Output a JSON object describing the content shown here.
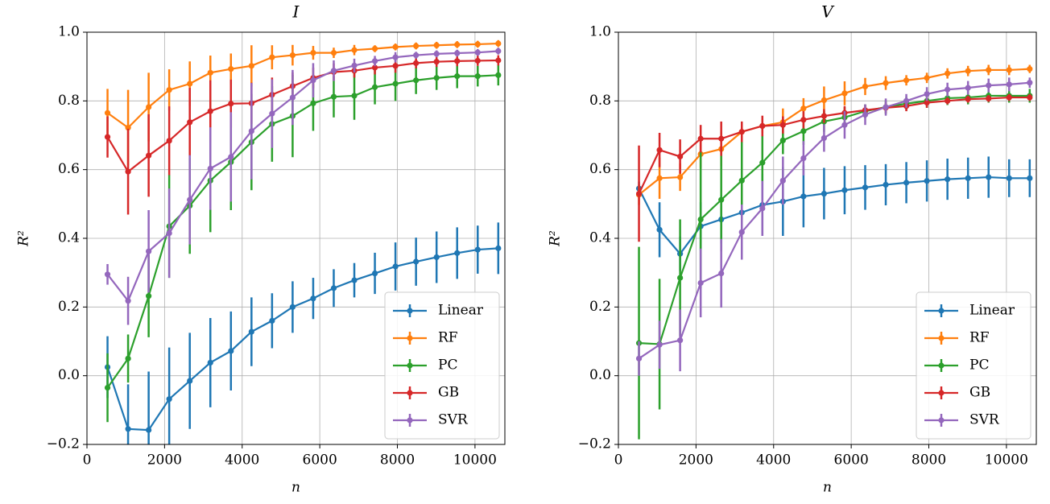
{
  "chart_data": [
    {
      "type": "line",
      "title": "I",
      "x_label": "n",
      "y_label": "R²",
      "x": [
        530,
        1060,
        1590,
        2120,
        2650,
        3180,
        3710,
        4240,
        4770,
        5300,
        5830,
        6360,
        6890,
        7420,
        7950,
        8480,
        9010,
        9540,
        10070,
        10600
      ],
      "xlim": [
        0,
        10770
      ],
      "xticks": [
        0,
        2000,
        4000,
        6000,
        8000,
        10000
      ],
      "ylim": [
        -0.2,
        1.0
      ],
      "yticks": [
        {
          "value": -0.2,
          "label": "−0.2"
        },
        {
          "value": 0,
          "label": "0.0"
        },
        0.2,
        0.4,
        0.6,
        0.8,
        {
          "value": 1.0,
          "label": "1.0"
        }
      ],
      "grid": true,
      "legend": "lower right",
      "series": [
        {
          "name": "Linear",
          "color": "#1f77b4",
          "values": [
            0.025,
            -0.155,
            -0.158,
            -0.068,
            -0.015,
            0.038,
            0.072,
            0.128,
            0.16,
            0.2,
            0.225,
            0.255,
            0.278,
            0.298,
            0.318,
            0.332,
            0.345,
            0.357,
            0.367,
            0.371
          ],
          "errors": [
            0.09,
            0.13,
            0.17,
            0.15,
            0.14,
            0.13,
            0.115,
            0.1,
            0.08,
            0.075,
            0.06,
            0.055,
            0.05,
            0.06,
            0.07,
            0.07,
            0.075,
            0.075,
            0.07,
            0.075
          ]
        },
        {
          "name": "RF",
          "color": "#ff7f0e",
          "values": [
            0.765,
            0.722,
            0.782,
            0.832,
            0.85,
            0.882,
            0.893,
            0.902,
            0.927,
            0.933,
            0.94,
            0.94,
            0.948,
            0.952,
            0.957,
            0.96,
            0.962,
            0.964,
            0.965,
            0.967
          ],
          "errors": [
            0.07,
            0.11,
            0.1,
            0.06,
            0.065,
            0.05,
            0.045,
            0.06,
            0.035,
            0.03,
            0.02,
            0.015,
            0.015,
            0.01,
            0.01,
            0.01,
            0.01,
            0.01,
            0.01,
            0.01
          ]
        },
        {
          "name": "PC",
          "color": "#2ca02c",
          "values": [
            -0.035,
            0.05,
            0.232,
            0.435,
            0.495,
            0.568,
            0.622,
            0.68,
            0.733,
            0.756,
            0.793,
            0.812,
            0.815,
            0.84,
            0.85,
            0.86,
            0.867,
            0.872,
            0.872,
            0.875
          ],
          "errors": [
            0.1,
            0.07,
            0.12,
            0.15,
            0.14,
            0.15,
            0.14,
            0.14,
            0.11,
            0.12,
            0.08,
            0.06,
            0.07,
            0.05,
            0.05,
            0.04,
            0.035,
            0.035,
            0.03,
            0.03
          ]
        },
        {
          "name": "GB",
          "color": "#d62728",
          "values": [
            0.695,
            0.594,
            0.641,
            0.684,
            0.738,
            0.77,
            0.792,
            0.793,
            0.818,
            0.843,
            0.867,
            0.884,
            0.888,
            0.897,
            0.902,
            0.91,
            0.914,
            0.916,
            0.917,
            0.918
          ],
          "errors": [
            0.06,
            0.125,
            0.12,
            0.1,
            0.1,
            0.09,
            0.07,
            0.06,
            0.05,
            0.04,
            0.03,
            0.025,
            0.02,
            0.02,
            0.02,
            0.015,
            0.015,
            0.015,
            0.015,
            0.015
          ]
        },
        {
          "name": "SVR",
          "color": "#9467bd",
          "values": [
            0.295,
            0.218,
            0.362,
            0.415,
            0.512,
            0.603,
            0.637,
            0.712,
            0.763,
            0.81,
            0.86,
            0.888,
            0.903,
            0.916,
            0.927,
            0.933,
            0.937,
            0.939,
            0.941,
            0.945
          ],
          "errors": [
            0.03,
            0.07,
            0.12,
            0.13,
            0.13,
            0.12,
            0.13,
            0.14,
            0.1,
            0.08,
            0.05,
            0.03,
            0.02,
            0.015,
            0.015,
            0.01,
            0.01,
            0.01,
            0.01,
            0.01
          ]
        }
      ]
    },
    {
      "type": "line",
      "title": "V",
      "x_label": "n",
      "y_label": "R²",
      "x": [
        530,
        1060,
        1590,
        2120,
        2650,
        3180,
        3710,
        4240,
        4770,
        5300,
        5830,
        6360,
        6890,
        7420,
        7950,
        8480,
        9010,
        9540,
        10070,
        10600
      ],
      "xlim": [
        0,
        10770
      ],
      "xticks": [
        0,
        2000,
        4000,
        6000,
        8000,
        10000
      ],
      "ylim": [
        -0.2,
        1.0
      ],
      "yticks": [
        {
          "value": -0.2,
          "label": "−0.2"
        },
        {
          "value": 0,
          "label": "0.0"
        },
        0.2,
        0.4,
        0.6,
        0.8,
        {
          "value": 1.0,
          "label": "1.0"
        }
      ],
      "grid": true,
      "legend": "lower right",
      "series": [
        {
          "name": "Linear",
          "color": "#1f77b4",
          "values": [
            0.545,
            0.425,
            0.355,
            0.435,
            0.455,
            0.475,
            0.497,
            0.507,
            0.522,
            0.53,
            0.54,
            0.548,
            0.556,
            0.562,
            0.567,
            0.572,
            0.575,
            0.578,
            0.575,
            0.575
          ],
          "errors": [
            0.02,
            0.08,
            0.05,
            0.07,
            0.07,
            0.07,
            0.09,
            0.1,
            0.09,
            0.075,
            0.07,
            0.065,
            0.06,
            0.06,
            0.06,
            0.06,
            0.06,
            0.06,
            0.055,
            0.055
          ]
        },
        {
          "name": "RF",
          "color": "#ff7f0e",
          "values": [
            0.527,
            0.575,
            0.578,
            0.645,
            0.66,
            0.71,
            0.727,
            0.738,
            0.778,
            0.802,
            0.822,
            0.842,
            0.852,
            0.86,
            0.867,
            0.88,
            0.887,
            0.89,
            0.89,
            0.893
          ],
          "errors": [
            0.03,
            0.06,
            0.04,
            0.04,
            0.05,
            0.03,
            0.02,
            0.04,
            0.03,
            0.04,
            0.035,
            0.025,
            0.02,
            0.015,
            0.015,
            0.015,
            0.015,
            0.015,
            0.015,
            0.012
          ]
        },
        {
          "name": "PC",
          "color": "#2ca02c",
          "values": [
            0.095,
            0.092,
            0.285,
            0.455,
            0.512,
            0.568,
            0.62,
            0.685,
            0.712,
            0.74,
            0.752,
            0.77,
            0.782,
            0.792,
            0.8,
            0.808,
            0.81,
            0.815,
            0.815,
            0.815
          ],
          "errors": [
            0.28,
            0.19,
            0.17,
            0.2,
            0.15,
            0.12,
            0.08,
            0.04,
            0.04,
            0.03,
            0.03,
            0.02,
            0.02,
            0.02,
            0.02,
            0.02,
            0.02,
            0.02,
            0.02,
            0.02
          ]
        },
        {
          "name": "GB",
          "color": "#d62728",
          "values": [
            0.53,
            0.657,
            0.638,
            0.69,
            0.69,
            0.71,
            0.727,
            0.73,
            0.745,
            0.756,
            0.765,
            0.773,
            0.78,
            0.785,
            0.795,
            0.8,
            0.805,
            0.807,
            0.81,
            0.81
          ],
          "errors": [
            0.14,
            0.05,
            0.05,
            0.04,
            0.05,
            0.03,
            0.03,
            0.025,
            0.025,
            0.02,
            0.02,
            0.015,
            0.015,
            0.015,
            0.015,
            0.01,
            0.01,
            0.01,
            0.01,
            0.01
          ]
        },
        {
          "name": "SVR",
          "color": "#9467bd",
          "values": [
            0.05,
            0.09,
            0.103,
            0.27,
            0.298,
            0.418,
            0.487,
            0.568,
            0.633,
            0.692,
            0.73,
            0.76,
            0.782,
            0.8,
            0.82,
            0.833,
            0.838,
            0.845,
            0.848,
            0.853
          ],
          "errors": [
            0.05,
            0.07,
            0.09,
            0.1,
            0.1,
            0.08,
            0.08,
            0.07,
            0.05,
            0.04,
            0.04,
            0.03,
            0.025,
            0.02,
            0.02,
            0.02,
            0.02,
            0.02,
            0.02,
            0.015
          ]
        }
      ]
    }
  ]
}
